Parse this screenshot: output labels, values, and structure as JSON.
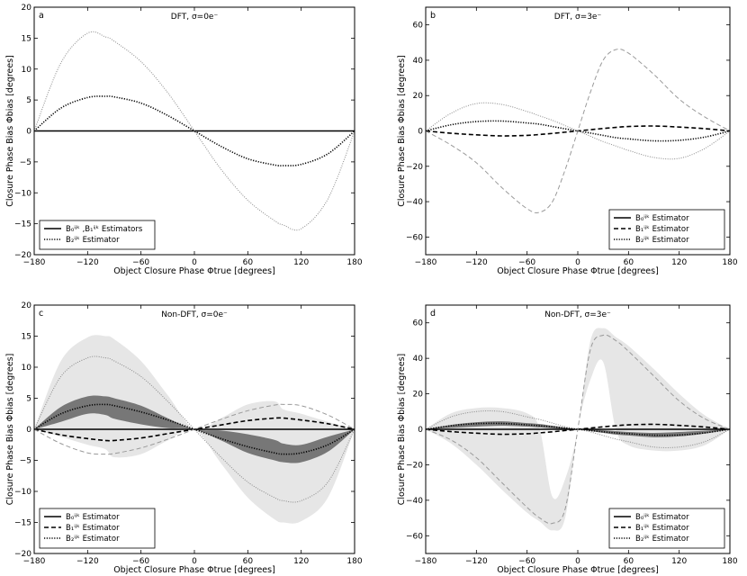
{
  "chart_data": [
    {
      "type": "line",
      "letter": "a",
      "title": "DFT, σ=0e⁻",
      "xlabel": "Object Closure Phase Φtrue [degrees]",
      "ylabel": "Closure Phase Bias Φbias [degrees]",
      "xlim": [
        -180,
        180
      ],
      "ylim": [
        -20,
        20
      ],
      "xticks": [
        -180,
        -120,
        -60,
        0,
        60,
        120,
        180
      ],
      "yticks": [
        -20,
        -15,
        -10,
        -5,
        0,
        5,
        10,
        15,
        20
      ],
      "grid": false,
      "legend_position": "lower-left",
      "legend": [
        {
          "label": "B₀ⁱʲᵏ ,B₁ⁱʲᵏ Estimators",
          "style": "solid"
        },
        {
          "label": "B₂ⁱʲᵏ Estimator",
          "style": "dotted"
        }
      ],
      "x": [
        -180,
        -150,
        -120,
        -100,
        -90,
        -60,
        -30,
        0,
        30,
        60,
        90,
        100,
        120,
        150,
        180
      ],
      "series": [
        {
          "name": "B0, B1",
          "style": "solid",
          "color": "#000000",
          "values": [
            0,
            0,
            0,
            0,
            0,
            0,
            0,
            0,
            0,
            0,
            0,
            0,
            0,
            0,
            0
          ]
        },
        {
          "name": "B1 (amplitude)",
          "style": "dotted-black",
          "color": "#000000",
          "values": [
            0,
            3.7,
            5.4,
            5.6,
            5.5,
            4.5,
            2.5,
            0,
            -2.5,
            -4.5,
            -5.5,
            -5.6,
            -5.4,
            -3.7,
            0
          ]
        },
        {
          "name": "B2",
          "style": "dotted-grey",
          "color": "#888888",
          "values": [
            0,
            11,
            15.8,
            15.2,
            14.5,
            11.2,
            6.2,
            0,
            -6.2,
            -11.2,
            -14.5,
            -15.2,
            -15.8,
            -11,
            0
          ]
        }
      ]
    },
    {
      "type": "line",
      "letter": "b",
      "title": "DFT, σ=3e⁻",
      "xlabel": "Object Closure Phase Φtrue [degrees]",
      "ylabel": "Closure Phase Bias Φbias [degrees]",
      "xlim": [
        -180,
        180
      ],
      "ylim": [
        -70,
        70
      ],
      "xticks": [
        -180,
        -120,
        -60,
        0,
        60,
        120,
        180
      ],
      "yticks": [
        -60,
        -40,
        -20,
        0,
        20,
        40,
        60
      ],
      "grid": false,
      "legend_position": "lower-right",
      "legend": [
        {
          "label": "B₀ⁱʲᵏ Estimator",
          "style": "solid"
        },
        {
          "label": "B₁ⁱʲᵏ Estimator",
          "style": "dashed"
        },
        {
          "label": "B₂ⁱʲᵏ Estimator",
          "style": "dotted"
        }
      ],
      "x": [
        -180,
        -150,
        -120,
        -90,
        -60,
        -45,
        -30,
        -15,
        0,
        15,
        30,
        45,
        60,
        90,
        120,
        150,
        180
      ],
      "series": [
        {
          "name": "B0",
          "style": "dotted-black",
          "color": "#000000",
          "values": [
            0,
            3.5,
            5.3,
            5.6,
            4.5,
            3.8,
            2.5,
            1.2,
            0,
            -1.2,
            -2.5,
            -3.8,
            -4.5,
            -5.6,
            -5.3,
            -3.5,
            0
          ]
        },
        {
          "name": "B1",
          "style": "dashed-black",
          "color": "#000000",
          "values": [
            0,
            -1.3,
            -2.2,
            -2.8,
            -2.5,
            -2,
            -1.4,
            -0.7,
            0,
            0.7,
            1.4,
            2,
            2.5,
            2.8,
            2.2,
            1.3,
            0
          ]
        },
        {
          "name": "B2",
          "style": "dotted-grey",
          "color": "#888888",
          "values": [
            0,
            10,
            15.5,
            15,
            11,
            8.5,
            6,
            3,
            0,
            -3,
            -6,
            -8.5,
            -11,
            -15,
            -15.5,
            -10,
            0
          ]
        },
        {
          "name": "B2 dashed",
          "style": "dashed-grey",
          "color": "#999999",
          "values": [
            0,
            -8,
            -18,
            -32,
            -44,
            -46,
            -40,
            -22,
            0,
            22,
            40,
            46,
            44,
            32,
            18,
            8,
            0
          ]
        }
      ]
    },
    {
      "type": "line",
      "letter": "c",
      "title": "Non-DFT, σ=0e⁻",
      "xlabel": "Object Closure Phase Φtrue [degrees]",
      "ylabel": "Closure Phase Bias Φbias [degrees]",
      "xlim": [
        -180,
        180
      ],
      "ylim": [
        -20,
        20
      ],
      "xticks": [
        -180,
        -120,
        -60,
        0,
        60,
        120,
        180
      ],
      "yticks": [
        -20,
        -15,
        -10,
        -5,
        0,
        5,
        10,
        15,
        20
      ],
      "grid": false,
      "legend_position": "lower-left",
      "legend": [
        {
          "label": "B₀ⁱʲᵏ Estimator",
          "style": "solid"
        },
        {
          "label": "B₁ⁱʲᵏ Estimator",
          "style": "dashed"
        },
        {
          "label": "B₂ⁱʲᵏ Estimator",
          "style": "dotted"
        }
      ],
      "x": [
        -180,
        -150,
        -120,
        -100,
        -90,
        -60,
        -30,
        0,
        30,
        60,
        90,
        100,
        120,
        150,
        180
      ],
      "bands": [
        {
          "name": "light",
          "color": "#e6e6e6",
          "upper": [
            0,
            11,
            14.8,
            15,
            14.5,
            11,
            5.5,
            0,
            1.8,
            4,
            4.5,
            3.2,
            2.5,
            1.2,
            0
          ],
          "lower": [
            0,
            -1.2,
            -2.5,
            -3.2,
            -4.5,
            -4,
            -1.8,
            0,
            -5.5,
            -11,
            -14.5,
            -15,
            -14.8,
            -11,
            0
          ]
        },
        {
          "name": "dark",
          "color": "#777777",
          "upper": [
            0,
            3.6,
            5.3,
            5.3,
            5,
            3.8,
            1.8,
            0,
            -0.2,
            -0.8,
            -1.7,
            -2.3,
            -2.5,
            -1.2,
            0
          ],
          "lower": [
            0,
            1.2,
            2.5,
            2.3,
            1.7,
            0.8,
            0.2,
            0,
            -1.8,
            -3.8,
            -5,
            -5.3,
            -5.3,
            -3.6,
            0
          ]
        }
      ],
      "series": [
        {
          "name": "B0",
          "style": "solid",
          "color": "#000000",
          "values": [
            0,
            0,
            0,
            0,
            0,
            0,
            0,
            0,
            0,
            0,
            0,
            0,
            0,
            0,
            0
          ]
        },
        {
          "name": "B1",
          "style": "dashed-black",
          "color": "#000000",
          "values": [
            0,
            -0.9,
            -1.5,
            -1.8,
            -1.8,
            -1.4,
            -0.7,
            0,
            0.7,
            1.4,
            1.8,
            1.8,
            1.5,
            0.9,
            0
          ]
        },
        {
          "name": "B1 grey",
          "style": "dashed-grey",
          "color": "#999999",
          "values": [
            0,
            -2.3,
            -3.8,
            -4,
            -3.9,
            -3,
            -1.6,
            0,
            1.6,
            3,
            3.9,
            4,
            3.8,
            2.3,
            0
          ]
        },
        {
          "name": "B0 dotted",
          "style": "dotted-black",
          "color": "#000000",
          "values": [
            0,
            2.5,
            3.8,
            4,
            3.8,
            2.8,
            1.5,
            0,
            -1.5,
            -2.8,
            -3.8,
            -4,
            -3.8,
            -2.5,
            0
          ]
        },
        {
          "name": "B2",
          "style": "dotted-grey",
          "color": "#888888",
          "values": [
            0,
            8.5,
            11.5,
            11.5,
            11,
            8.5,
            4.5,
            0,
            -4.5,
            -8.5,
            -11,
            -11.5,
            -11.5,
            -8.5,
            0
          ]
        }
      ]
    },
    {
      "type": "line",
      "letter": "d",
      "title": "Non-DFT, σ=3e⁻",
      "xlabel": "Object Closure Phase Φtrue [degrees]",
      "ylabel": "Closure Phase Bias Φbias [degrees]",
      "xlim": [
        -180,
        180
      ],
      "ylim": [
        -70,
        70
      ],
      "xticks": [
        -180,
        -120,
        -60,
        0,
        60,
        120,
        180
      ],
      "yticks": [
        -60,
        -40,
        -20,
        0,
        20,
        40,
        60
      ],
      "grid": false,
      "legend_position": "lower-right",
      "legend": [
        {
          "label": "B₀ⁱʲᵏ Estimator",
          "style": "solid"
        },
        {
          "label": "B₁ⁱʲᵏ Estimator",
          "style": "dashed"
        },
        {
          "label": "B₂ⁱʲᵏ Estimator",
          "style": "dotted"
        }
      ],
      "x": [
        -180,
        -150,
        -120,
        -90,
        -60,
        -45,
        -30,
        -15,
        0,
        15,
        30,
        45,
        60,
        90,
        120,
        150,
        180
      ],
      "bands": [
        {
          "name": "light",
          "color": "#e6e6e6",
          "upper": [
            0,
            9,
            12,
            12,
            9,
            0,
            -38,
            -28,
            0,
            50,
            57,
            52,
            47,
            34,
            20,
            8,
            0
          ],
          "lower": [
            0,
            -8,
            -20,
            -34,
            -47,
            -52,
            -57,
            -50,
            0,
            28,
            38,
            0,
            -9,
            -12,
            -12,
            -9,
            0
          ]
        },
        {
          "name": "dark",
          "color": "#777777",
          "upper": [
            0,
            2.5,
            4,
            4.5,
            3.5,
            3,
            2,
            1,
            0,
            0,
            -0.5,
            -1,
            -1.5,
            -2,
            -1.5,
            -0.8,
            0
          ],
          "lower": [
            0,
            0.8,
            1.5,
            2,
            1.5,
            1,
            0.5,
            0,
            0,
            -1,
            -2,
            -3,
            -3.5,
            -4.5,
            -4,
            -2.5,
            0
          ]
        }
      ],
      "series": [
        {
          "name": "B0",
          "style": "solid",
          "color": "#000000",
          "values": [
            0,
            0,
            0,
            0,
            0,
            0,
            0,
            0,
            0,
            0,
            0,
            0,
            0,
            0,
            0,
            0,
            0
          ]
        },
        {
          "name": "B1",
          "style": "dashed-black",
          "color": "#000000",
          "values": [
            0,
            -1.3,
            -2.2,
            -2.8,
            -2.5,
            -2,
            -1.4,
            -0.7,
            0,
            0.7,
            1.4,
            2,
            2.5,
            2.8,
            2.2,
            1.3,
            0
          ]
        },
        {
          "name": "B0 dotted",
          "style": "dotted-black",
          "color": "#000000",
          "values": [
            0,
            2,
            3.2,
            3.3,
            2.5,
            2,
            1.4,
            0.7,
            0,
            -0.7,
            -1.4,
            -2,
            -2.5,
            -3.3,
            -3.2,
            -2,
            0
          ]
        },
        {
          "name": "B2 dotted",
          "style": "dotted-grey",
          "color": "#888888",
          "values": [
            0,
            7,
            10,
            10,
            7,
            5.5,
            3.5,
            1.5,
            0,
            -1.5,
            -3.5,
            -5.5,
            -7,
            -10,
            -10,
            -7,
            0
          ]
        },
        {
          "name": "B2 dashed",
          "style": "dashed-grey",
          "color": "#999999",
          "values": [
            0,
            -6,
            -16,
            -30,
            -44,
            -50,
            -53,
            -45,
            0,
            45,
            53,
            50,
            44,
            30,
            16,
            6,
            0
          ]
        }
      ]
    }
  ]
}
